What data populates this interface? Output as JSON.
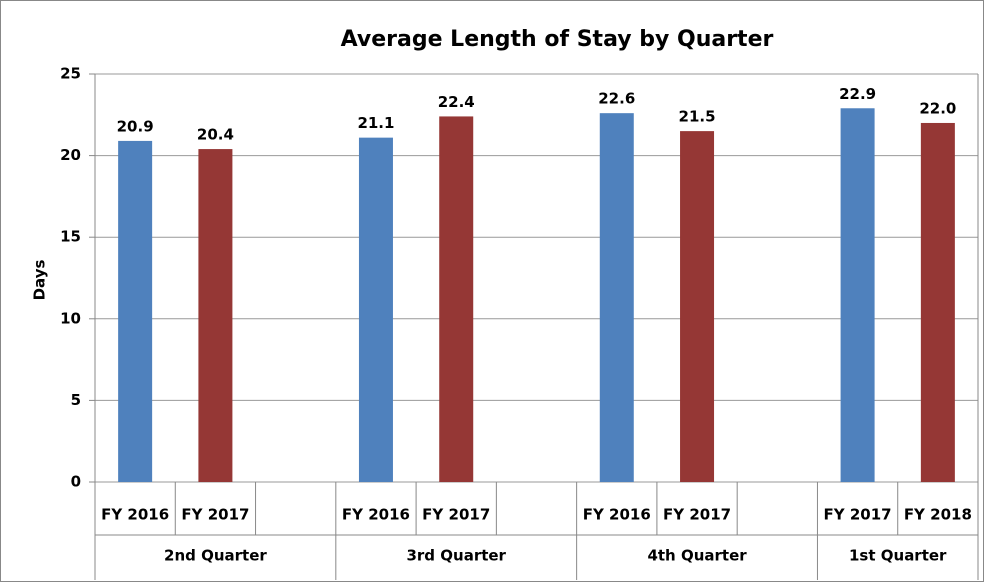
{
  "chart_data": {
    "type": "bar",
    "title": "Average Length of Stay by Quarter",
    "y_label": "Days",
    "groups": [
      {
        "name": "2nd Quarter",
        "categories": [
          "FY 2016",
          "FY 2017",
          null
        ],
        "values": [
          20.9,
          20.4,
          null
        ],
        "value_labels": [
          "20.9",
          "20.4",
          null
        ]
      },
      {
        "name": "3rd Quarter",
        "categories": [
          "FY 2016",
          "FY 2017",
          null
        ],
        "values": [
          21.1,
          22.4,
          null
        ],
        "value_labels": [
          "21.1",
          "22.4",
          null
        ]
      },
      {
        "name": "4th Quarter",
        "categories": [
          "FY 2016",
          "FY 2017",
          null
        ],
        "values": [
          22.6,
          21.5,
          null
        ],
        "value_labels": [
          "22.6",
          "21.5",
          null
        ]
      },
      {
        "name": "1st Quarter",
        "categories": [
          "FY 2017",
          "FY 2018"
        ],
        "values": [
          22.9,
          22.0
        ],
        "value_labels": [
          "22.9",
          "22.0"
        ]
      }
    ],
    "colors": [
      "#4f81bd",
      "#953735"
    ],
    "ylim": [
      0,
      25
    ],
    "yticks": [
      0,
      5,
      10,
      15,
      20,
      25
    ],
    "grid": true
  }
}
